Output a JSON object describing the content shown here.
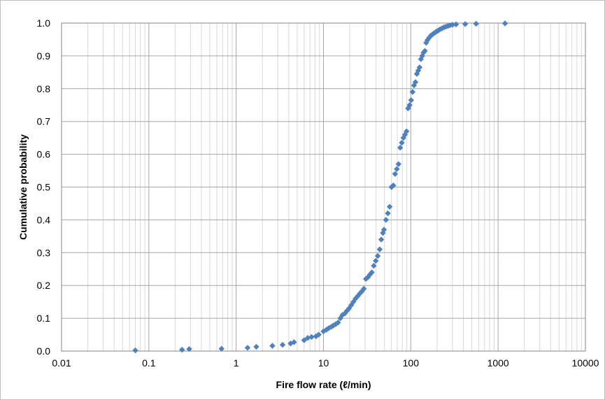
{
  "chart_data": {
    "type": "scatter",
    "title": "",
    "xlabel": "Fire flow rate (ℓ/min)",
    "ylabel": "Cumulative probability",
    "x_scale": "log",
    "xlim": [
      0.01,
      10000
    ],
    "ylim": [
      0,
      1.0
    ],
    "x_ticks": [
      "0.01",
      "0.1",
      "1",
      "10",
      "100",
      "1000",
      "10000"
    ],
    "y_ticks": [
      "0.0",
      "0.1",
      "0.2",
      "0.3",
      "0.4",
      "0.5",
      "0.6",
      "0.7",
      "0.8",
      "0.9",
      "1.0"
    ],
    "grid": {
      "x_major": true,
      "x_minor": true,
      "y_major": true
    },
    "legend": "none",
    "marker": "diamond",
    "series_color": "#4f81bd",
    "series": [
      {
        "x": [
          0.07,
          0.24,
          0.29,
          0.68,
          1.35,
          1.7,
          2.6,
          3.4,
          4.2,
          4.6,
          6.0,
          6.6,
          7.3,
          8.2,
          8.8,
          10.0,
          10.8,
          11.5,
          12.3,
          13.0,
          13.8,
          14.7,
          15.6,
          16.5,
          17.6,
          18.6,
          19.6,
          20.8,
          22.0,
          23.3,
          24.6,
          26.0,
          27.5,
          29.0,
          30.6,
          32.3,
          34.0,
          35.8,
          37.7,
          39.7,
          41.8,
          44.0,
          45.9,
          47.9,
          49.3,
          52.0,
          54.6,
          57.3,
          60.2,
          63.1,
          66.1,
          69.2,
          72.4,
          75.6,
          78.9,
          82.3,
          85.8,
          89.4,
          93.1,
          96.9,
          100.8,
          104.8,
          108.9,
          113.0,
          117.3,
          121.6,
          126.0,
          130.5,
          135.2,
          140.0,
          145.0,
          150.0,
          155.0,
          162.0,
          170.0,
          178.0,
          187.0,
          196.0,
          206.0,
          216.0,
          228.0,
          240.0,
          252.0,
          265.0,
          280.0,
          300.0,
          330.0,
          420.0,
          560.0,
          1200.0
        ],
        "y": [
          0.002,
          0.004,
          0.006,
          0.007,
          0.01,
          0.013,
          0.016,
          0.019,
          0.023,
          0.027,
          0.033,
          0.04,
          0.043,
          0.045,
          0.05,
          0.06,
          0.065,
          0.07,
          0.074,
          0.078,
          0.082,
          0.087,
          0.1,
          0.11,
          0.115,
          0.123,
          0.13,
          0.14,
          0.15,
          0.16,
          0.167,
          0.175,
          0.182,
          0.19,
          0.22,
          0.225,
          0.233,
          0.24,
          0.26,
          0.275,
          0.29,
          0.31,
          0.34,
          0.36,
          0.37,
          0.4,
          0.42,
          0.44,
          0.5,
          0.505,
          0.54,
          0.555,
          0.57,
          0.62,
          0.635,
          0.65,
          0.66,
          0.67,
          0.74,
          0.75,
          0.765,
          0.79,
          0.81,
          0.82,
          0.845,
          0.855,
          0.865,
          0.89,
          0.9,
          0.91,
          0.915,
          0.94,
          0.948,
          0.955,
          0.962,
          0.966,
          0.97,
          0.974,
          0.977,
          0.981,
          0.984,
          0.987,
          0.989,
          0.991,
          0.993,
          0.995,
          0.996,
          0.997,
          0.998,
          0.999
        ]
      }
    ]
  }
}
